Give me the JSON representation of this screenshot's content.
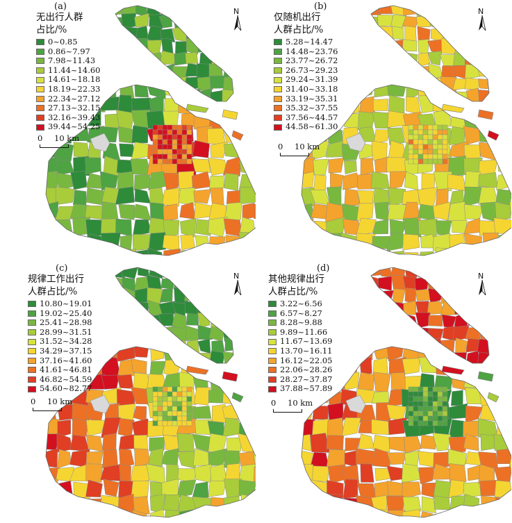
{
  "figure": {
    "north_label": "N",
    "scale": {
      "zero": "0",
      "distance": "10 km"
    }
  },
  "panels": [
    {
      "id": "a",
      "label": "(a)",
      "legend_title_1": "无出行人群",
      "legend_title_2": "占比/%",
      "classes": [
        {
          "range": "0~0.85",
          "color": "#2e8b3a"
        },
        {
          "range": "0.86~7.97",
          "color": "#4ea342"
        },
        {
          "range": "7.98~11.43",
          "color": "#79b83f"
        },
        {
          "range": "11.44~14.60",
          "color": "#a9cc3a"
        },
        {
          "range": "14.61~18.18",
          "color": "#d7e23f"
        },
        {
          "range": "18.19~22.33",
          "color": "#f5d532"
        },
        {
          "range": "22.34~27.12",
          "color": "#f4a32c"
        },
        {
          "range": "27.13~32.15",
          "color": "#ec7125"
        },
        {
          "range": "32.16~39.43",
          "color": "#e03f23"
        },
        {
          "range": "39.44~54.25",
          "color": "#d3101f"
        }
      ]
    },
    {
      "id": "b",
      "label": "(b)",
      "legend_title_1": "仅随机出行",
      "legend_title_2": "人群占比/%",
      "classes": [
        {
          "range": "5.28~14.47",
          "color": "#2e8b3a"
        },
        {
          "range": "14.48~23.76",
          "color": "#4ea342"
        },
        {
          "range": "23.77~26.72",
          "color": "#79b83f"
        },
        {
          "range": "26.73~29.23",
          "color": "#a9cc3a"
        },
        {
          "range": "29.24~31.39",
          "color": "#d7e23f"
        },
        {
          "range": "31.40~33.18",
          "color": "#f5d532"
        },
        {
          "range": "33.19~35.31",
          "color": "#f4a32c"
        },
        {
          "range": "35.32~37.55",
          "color": "#ec7125"
        },
        {
          "range": "37.56~44.57",
          "color": "#e03f23"
        },
        {
          "range": "44.58~61.30",
          "color": "#d3101f"
        }
      ]
    },
    {
      "id": "c",
      "label": "(c)",
      "legend_title_1": "规律工作出行",
      "legend_title_2": "人群占比/%",
      "classes": [
        {
          "range": "10.80~19.01",
          "color": "#2e8b3a"
        },
        {
          "range": "19.02~25.40",
          "color": "#4ea342"
        },
        {
          "range": "25.41~28.98",
          "color": "#79b83f"
        },
        {
          "range": "28.99~31.51",
          "color": "#a9cc3a"
        },
        {
          "range": "31.52~34.28",
          "color": "#d7e23f"
        },
        {
          "range": "34.29~37.15",
          "color": "#f5d532"
        },
        {
          "range": "37.16~41.60",
          "color": "#f4a32c"
        },
        {
          "range": "41.61~46.81",
          "color": "#ec7125"
        },
        {
          "range": "46.82~54.59",
          "color": "#e03f23"
        },
        {
          "range": "54.60~82.77",
          "color": "#d3101f"
        }
      ]
    },
    {
      "id": "d",
      "label": "(d)",
      "legend_title_1": "其他规律出行",
      "legend_title_2": "人群占比/%",
      "classes": [
        {
          "range": "3.22~6.56",
          "color": "#2e8b3a"
        },
        {
          "range": "6.57~8.27",
          "color": "#4ea342"
        },
        {
          "range": "8.28~9.88",
          "color": "#79b83f"
        },
        {
          "range": "9.89~11.66",
          "color": "#a9cc3a"
        },
        {
          "range": "11.67~13.69",
          "color": "#d7e23f"
        },
        {
          "range": "13.70~16.11",
          "color": "#f5d532"
        },
        {
          "range": "16.12~22.05",
          "color": "#f4a32c"
        },
        {
          "range": "22.06~28.26",
          "color": "#ec7125"
        },
        {
          "range": "28.27~37.87",
          "color": "#e03f23"
        },
        {
          "range": "37.88~57.89",
          "color": "#d3101f"
        }
      ]
    }
  ]
}
